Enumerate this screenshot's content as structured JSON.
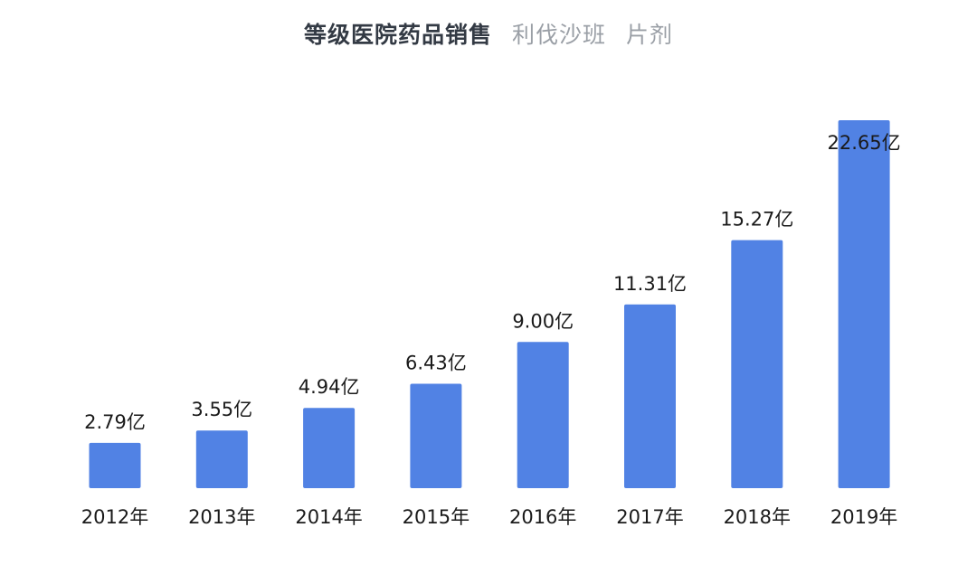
{
  "header": {
    "title": "等级医院药品销售",
    "subtitle_1": "利伐沙班",
    "subtitle_2": "片剂"
  },
  "colors": {
    "bar": "#5182e4",
    "title": "#333a44",
    "subtitle": "#9a9fa6",
    "text": "#1a1a1a"
  },
  "chart_data": {
    "type": "bar",
    "title": "等级医院药品销售",
    "subtitle": "利伐沙班 片剂",
    "xlabel": "",
    "ylabel": "",
    "categories": [
      "2012年",
      "2013年",
      "2014年",
      "2015年",
      "2016年",
      "2017年",
      "2018年",
      "2019年"
    ],
    "values": [
      2.79,
      3.55,
      4.94,
      6.43,
      9.0,
      11.31,
      15.27,
      22.65
    ],
    "data_labels": [
      "2.79亿",
      "3.55亿",
      "4.94亿",
      "6.43亿",
      "9.00亿",
      "11.31亿",
      "15.27亿",
      "22.65亿"
    ],
    "unit": "亿",
    "ylim": [
      0,
      22.65
    ],
    "grid": false,
    "legend": "none"
  }
}
